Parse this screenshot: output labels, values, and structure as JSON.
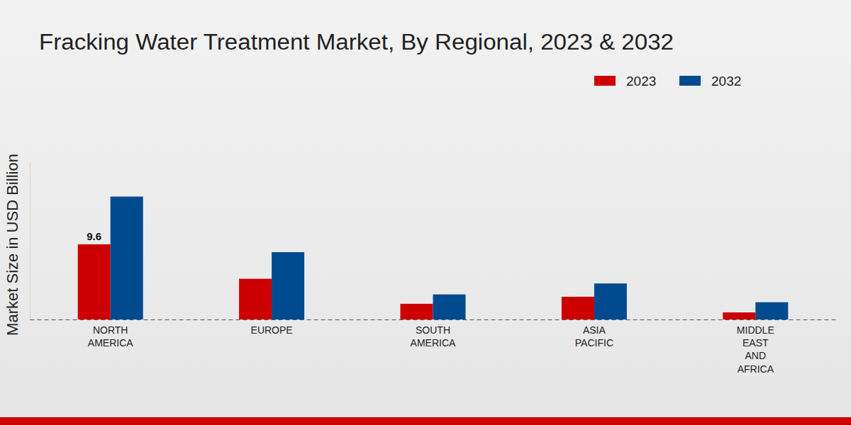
{
  "chart_data": {
    "type": "bar",
    "title": "Fracking Water Treatment Market, By Regional, 2023 & 2032",
    "y_label": "Market Size in USD Billion",
    "categories": [
      "NORTH AMERICA",
      "EUROPE",
      "SOUTH AMERICA",
      "ASIA PACIFIC",
      "MIDDLE EAST AND AFRICA"
    ],
    "series": [
      {
        "name": "2023",
        "color": "#cc0000",
        "values": [
          9.6,
          5.2,
          2.0,
          2.9,
          0.9
        ],
        "value_labels": [
          "9.6",
          null,
          null,
          null,
          null
        ]
      },
      {
        "name": "2032",
        "color": "#004a8f",
        "values": [
          15.7,
          8.6,
          3.2,
          4.6,
          2.2
        ]
      }
    ],
    "ylim": [
      0,
      20
    ],
    "tick_labels": "x",
    "legend": "top-right"
  }
}
